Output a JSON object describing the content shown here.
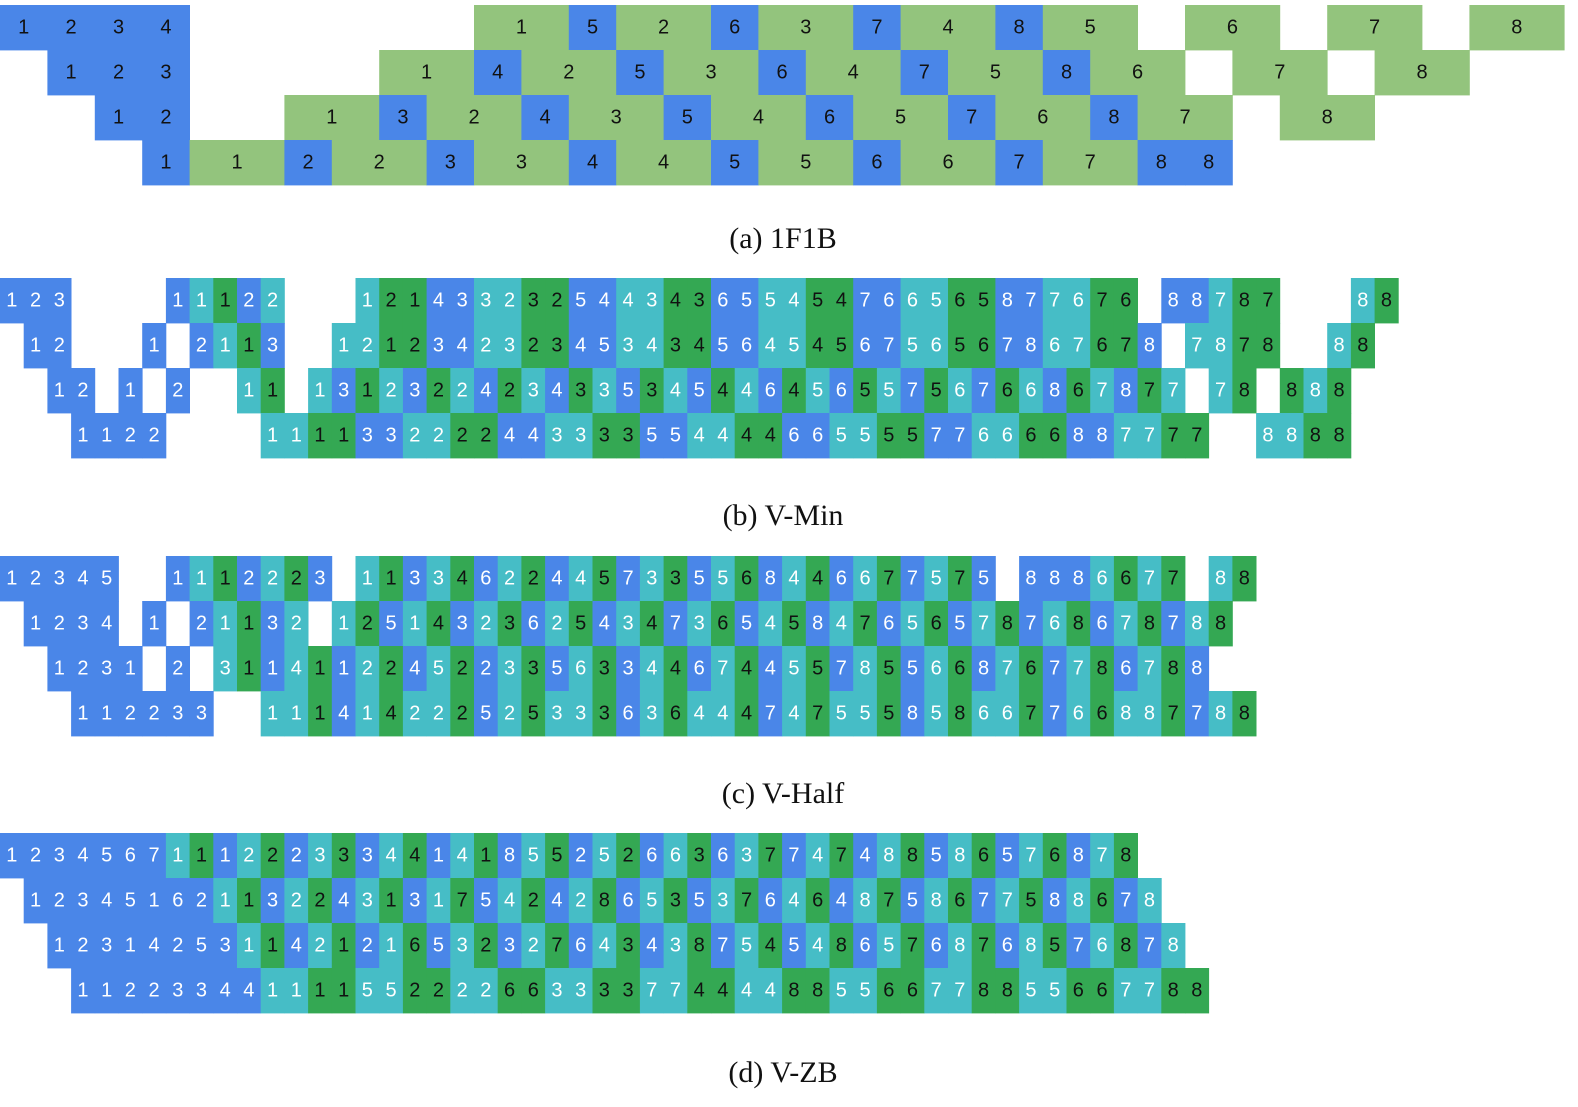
{
  "colors": {
    "b": "#4a86e8",
    "c": "#46bdc6",
    "g": "#34a853",
    "G": "#93c47d"
  },
  "panels": [
    {
      "caption": "(a) 1F1B",
      "rows": [
        {
          "labels": [
            "1",
            "2",
            "3",
            "4",
            null,
            null,
            null,
            null,
            null,
            null,
            "1",
            "5",
            "2",
            "6",
            "3",
            "7",
            "4",
            "8",
            "5",
            null,
            "6",
            null,
            "7",
            null,
            "8"
          ],
          "fill": "bbbb......GbGbGbGbG.G.G.G"
        },
        {
          "labels": [
            null,
            "1",
            "2",
            "3",
            null,
            null,
            null,
            null,
            "1",
            "4",
            "2",
            "5",
            "3",
            "6",
            "4",
            "7",
            "5",
            "8",
            "6",
            null,
            "7",
            null,
            "8"
          ],
          "fill": ".bbb....GbGbGbGbGbG.G.G"
        },
        {
          "labels": [
            null,
            null,
            "1",
            "2",
            null,
            null,
            "1",
            "3",
            "2",
            "4",
            "3",
            "5",
            "4",
            "6",
            "5",
            "7",
            "6",
            "8",
            "7",
            null,
            "8"
          ],
          "fill": "..bb..GbGbGbGbGbGbG.G"
        },
        {
          "labels": [
            null,
            null,
            null,
            "1",
            "1",
            "2",
            "2",
            "3",
            "3",
            "4",
            "4",
            "5",
            "5",
            "6",
            "6",
            "7",
            "7",
            "8",
            "8"
          ],
          "fill": "...bGbGbGbGbGbGbG"
        }
      ]
    },
    {
      "caption": "(b) V-Min",
      "rows": [
        {
          "labels": [
            "1",
            "2",
            "3",
            null,
            null,
            null,
            null,
            "1",
            "1",
            "1",
            "2",
            "2",
            null,
            null,
            null,
            "1",
            "2",
            "1",
            "4",
            "3",
            "3",
            "2",
            "3",
            "2",
            "5",
            "4",
            "4",
            "3",
            "4",
            "3",
            "6",
            "5",
            "5",
            "4",
            "5",
            "4",
            "7",
            "6",
            "6",
            "5",
            "6",
            "5",
            "8",
            "7",
            "7",
            "6",
            "7",
            "6",
            null,
            "8",
            "8",
            "7",
            "8",
            "7",
            null,
            null,
            null,
            "8",
            "8"
          ],
          "fill": "bbb....bcgbc...cggbbccggbbccggbbccggbbccggbbccgg.bbcgg...cg"
        },
        {
          "labels": [
            null,
            "1",
            "2",
            null,
            null,
            null,
            "1",
            null,
            "2",
            "1",
            "1",
            "3",
            null,
            null,
            "1",
            "2",
            "1",
            "2",
            "3",
            "4",
            "2",
            "3",
            "2",
            "3",
            "4",
            "5",
            "3",
            "4",
            "3",
            "4",
            "5",
            "6",
            "4",
            "5",
            "4",
            "5",
            "6",
            "7",
            "5",
            "6",
            "5",
            "6",
            "7",
            "8",
            "6",
            "7",
            "6",
            "7",
            "8",
            null,
            "7",
            "8",
            "7",
            "8",
            null,
            null,
            "8",
            "8"
          ],
          "fill": ".bb...b.bcgb..ccggbbccggbbccggbbccggbbccggbbccggb.ccgg..cg"
        },
        {
          "labels": [
            null,
            null,
            "1",
            "2",
            null,
            "1",
            null,
            "2",
            null,
            null,
            "1",
            "1",
            null,
            "1",
            "3",
            "1",
            "2",
            "3",
            "2",
            "2",
            "4",
            "2",
            "3",
            "4",
            "3",
            "3",
            "5",
            "3",
            "4",
            "5",
            "4",
            "4",
            "6",
            "4",
            "5",
            "6",
            "5",
            "5",
            "7",
            "5",
            "6",
            "7",
            "6",
            "6",
            "8",
            "6",
            "7",
            "8",
            "7",
            "7",
            null,
            "7",
            "8",
            null,
            "8",
            "8",
            "8"
          ],
          "fill": "..bb.b.b..cg.cbgcbgcbgcbgcbgcbgcbgcbgcbgcbgcbgcbgc.cg.gcg"
        },
        {
          "labels": [
            null,
            null,
            null,
            "1",
            "1",
            "2",
            "2",
            null,
            null,
            null,
            null,
            "1",
            "1",
            "1",
            "1",
            "3",
            "3",
            "2",
            "2",
            "2",
            "2",
            "4",
            "4",
            "3",
            "3",
            "3",
            "3",
            "5",
            "5",
            "4",
            "4",
            "4",
            "4",
            "6",
            "6",
            "5",
            "5",
            "5",
            "5",
            "7",
            "7",
            "6",
            "6",
            "6",
            "6",
            "8",
            "8",
            "7",
            "7",
            "7",
            "7",
            null,
            null,
            "8",
            "8",
            "8",
            "8"
          ],
          "fill": "...bbbb....ccggbbccggbbccggbbccggbbccggbbccggbbccgg..ccgg"
        }
      ]
    },
    {
      "caption": "(c) V-Half",
      "rows": [
        {
          "labels": [
            "1",
            "2",
            "3",
            "4",
            "5",
            null,
            null,
            "1",
            "1",
            "1",
            "2",
            "2",
            "2",
            "3",
            null,
            "1",
            "1",
            "3",
            "3",
            "4",
            "6",
            "2",
            "2",
            "4",
            "4",
            "5",
            "7",
            "3",
            "3",
            "5",
            "5",
            "6",
            "8",
            "4",
            "4",
            "6",
            "6",
            "7",
            "7",
            "5",
            "7",
            "5",
            null,
            "8",
            "8",
            "8",
            "6",
            "6",
            "7",
            "7",
            null,
            "8",
            "8"
          ],
          "fill": "bbbbb..bcgbcgb.cgbcgbcgbcgbcgbcgbcgbcgbcgb.bbbcgcg.cg"
        },
        {
          "labels": [
            null,
            "1",
            "2",
            "3",
            "4",
            null,
            "1",
            null,
            "2",
            "1",
            "1",
            "3",
            "2",
            null,
            "1",
            "2",
            "5",
            "1",
            "4",
            "3",
            "2",
            "3",
            "6",
            "2",
            "5",
            "4",
            "3",
            "4",
            "7",
            "3",
            "6",
            "5",
            "4",
            "5",
            "8",
            "4",
            "7",
            "6",
            "5",
            "6",
            "5",
            "7",
            "8",
            "7",
            "6",
            "8",
            "6",
            "7",
            "8",
            "7",
            "8",
            "8"
          ],
          "fill": ".bbbb.b.bcgbc.cgbcgbcgbcgbcgbcgbcgbcgbcgbcgbcgbcgbcg"
        },
        {
          "labels": [
            null,
            null,
            "1",
            "2",
            "3",
            "1",
            null,
            "2",
            null,
            "3",
            "1",
            "1",
            "4",
            "1",
            "1",
            "2",
            "2",
            "4",
            "5",
            "2",
            "2",
            "3",
            "3",
            "5",
            "6",
            "3",
            "3",
            "4",
            "4",
            "6",
            "7",
            "4",
            "4",
            "5",
            "5",
            "7",
            "8",
            "5",
            "5",
            "6",
            "6",
            "8",
            "7",
            "6",
            "7",
            "7",
            "8",
            "6",
            "7",
            "8",
            "8"
          ],
          "fill": "..bbbb.b.cgbcgbcgbcgbcgbcgbcgbcgbcgbcgbcgbcgbcgbcgb"
        },
        {
          "labels": [
            null,
            null,
            null,
            "1",
            "1",
            "2",
            "2",
            "3",
            "3",
            null,
            null,
            "1",
            "1",
            "1",
            "4",
            "1",
            "4",
            "2",
            "2",
            "2",
            "5",
            "2",
            "5",
            "3",
            "3",
            "3",
            "6",
            "3",
            "6",
            "4",
            "4",
            "4",
            "7",
            "4",
            "7",
            "5",
            "5",
            "5",
            "8",
            "5",
            "8",
            "6",
            "6",
            "7",
            "7",
            "6",
            "6",
            "8",
            "8",
            "7",
            "7",
            "8",
            "8"
          ],
          "fill": "...bbbbbb..ccgbcgccgbcgccgbcgccgbcgccgbcgccgbcgccgbcg"
        }
      ]
    },
    {
      "caption": "(d) V-ZB",
      "rows": [
        {
          "labels": [
            "1",
            "2",
            "3",
            "4",
            "5",
            "6",
            "7",
            "1",
            "1",
            "1",
            "2",
            "2",
            "2",
            "3",
            "3",
            "3",
            "4",
            "4",
            "1",
            "4",
            "1",
            "8",
            "5",
            "5",
            "2",
            "5",
            "2",
            "6",
            "6",
            "3",
            "6",
            "3",
            "7",
            "7",
            "4",
            "7",
            "4",
            "8",
            "8",
            "5",
            "8",
            "6",
            "5",
            "7",
            "6",
            "8",
            "7",
            "8"
          ],
          "fill": "bbbbbbbcgbcgbcgbcgbcgbcgbcgbcgbcgbcgbcgbcgbcgbcg"
        },
        {
          "labels": [
            null,
            "1",
            "2",
            "3",
            "4",
            "5",
            "1",
            "6",
            "2",
            "1",
            "1",
            "3",
            "2",
            "2",
            "4",
            "3",
            "1",
            "3",
            "1",
            "7",
            "5",
            "4",
            "2",
            "4",
            "2",
            "8",
            "6",
            "5",
            "3",
            "5",
            "3",
            "7",
            "6",
            "4",
            "6",
            "4",
            "8",
            "7",
            "5",
            "8",
            "6",
            "7",
            "7",
            "5",
            "8",
            "8",
            "6",
            "7",
            "8"
          ],
          "fill": ".bbbbbbbbcgbcgbcgbcgbcgbcgbcgbcgbcgbcgbcgbcgbcgbc"
        },
        {
          "labels": [
            null,
            null,
            "1",
            "2",
            "3",
            "1",
            "4",
            "2",
            "5",
            "3",
            "1",
            "1",
            "4",
            "2",
            "1",
            "2",
            "1",
            "6",
            "5",
            "3",
            "2",
            "3",
            "2",
            "7",
            "6",
            "4",
            "3",
            "4",
            "3",
            "8",
            "7",
            "5",
            "4",
            "5",
            "4",
            "8",
            "6",
            "5",
            "7",
            "6",
            "8",
            "7",
            "6",
            "8",
            "5",
            "7",
            "6",
            "8",
            "7",
            "8"
          ],
          "fill": "..bbbbbbbbcgbcgbcgbcgbcgbcgbcgbcgbcgbcgbcgbcgbcgbc"
        },
        {
          "labels": [
            null,
            null,
            null,
            "1",
            "1",
            "2",
            "2",
            "3",
            "3",
            "4",
            "4",
            "1",
            "1",
            "1",
            "1",
            "5",
            "5",
            "2",
            "2",
            "2",
            "2",
            "6",
            "6",
            "3",
            "3",
            "3",
            "3",
            "7",
            "7",
            "4",
            "4",
            "4",
            "4",
            "8",
            "8",
            "5",
            "5",
            "6",
            "6",
            "7",
            "7",
            "8",
            "8",
            "5",
            "5",
            "6",
            "6",
            "7",
            "7",
            "8",
            "8"
          ],
          "fill": "...bbbbbbbbccggccggccggccggccggccggccggccggccggccgg"
        }
      ]
    }
  ]
}
